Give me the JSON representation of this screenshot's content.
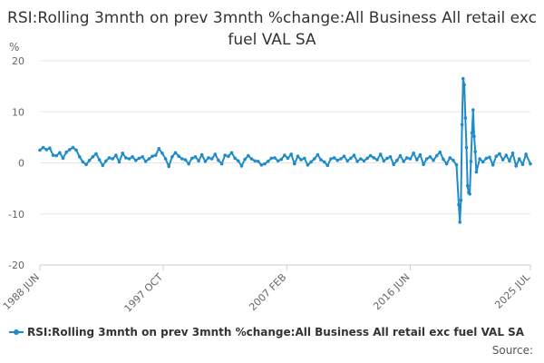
{
  "chart_data": {
    "type": "line",
    "title": "RSI:Rolling 3mnth on prev 3mnth %change:All Business All retail exc fuel VAL SA",
    "ylabel": "%",
    "xlabel": "",
    "ylim": [
      -20,
      20
    ],
    "yticks": [
      20,
      10,
      0,
      -10,
      -20
    ],
    "x_tick_labels": [
      "1988 JUN",
      "1997 OCT",
      "2007 FEB",
      "2016 JUN",
      "2025 JUL"
    ],
    "grid": true,
    "legend_position": "bottom-left",
    "source_label": "Source:",
    "series": [
      {
        "name": "RSI:Rolling 3mnth on prev 3mnth %change:All Business All retail exc fuel VAL SA",
        "color": "#1f8bc8",
        "points": [
          [
            "1988 JUN",
            2.5
          ],
          [
            "1988 SEP",
            3.0
          ],
          [
            "1988 DEC",
            2.6
          ],
          [
            "1989 MAR",
            2.9
          ],
          [
            "1989 JUN",
            1.5
          ],
          [
            "1989 SEP",
            1.4
          ],
          [
            "1989 DEC",
            2.0
          ],
          [
            "1990 MAR",
            0.9
          ],
          [
            "1990 JUN",
            2.1
          ],
          [
            "1990 SEP",
            2.6
          ],
          [
            "1990 DEC",
            3.0
          ],
          [
            "1991 MAR",
            2.5
          ],
          [
            "1991 JUN",
            1.2
          ],
          [
            "1991 SEP",
            0.2
          ],
          [
            "1991 DEC",
            -0.3
          ],
          [
            "1992 MAR",
            0.5
          ],
          [
            "1992 JUN",
            1.2
          ],
          [
            "1992 SEP",
            1.8
          ],
          [
            "1992 DEC",
            0.6
          ],
          [
            "1993 MAR",
            -0.5
          ],
          [
            "1993 JUN",
            0.4
          ],
          [
            "1993 SEP",
            1.0
          ],
          [
            "1993 DEC",
            0.8
          ],
          [
            "1994 MAR",
            1.5
          ],
          [
            "1994 JUN",
            0.2
          ],
          [
            "1994 SEP",
            1.9
          ],
          [
            "1994 DEC",
            1.0
          ],
          [
            "1995 MAR",
            0.8
          ],
          [
            "1995 JUN",
            1.2
          ],
          [
            "1995 SEP",
            0.5
          ],
          [
            "1995 DEC",
            0.9
          ],
          [
            "1996 MAR",
            1.2
          ],
          [
            "1996 JUN",
            0.3
          ],
          [
            "1996 SEP",
            0.8
          ],
          [
            "1996 DEC",
            1.3
          ],
          [
            "1997 MAR",
            1.5
          ],
          [
            "1997 JUN",
            2.8
          ],
          [
            "1997 SEP",
            1.9
          ],
          [
            "1997 DEC",
            0.8
          ],
          [
            "1998 MAR",
            -0.7
          ],
          [
            "1998 JUN",
            1.2
          ],
          [
            "1998 SEP",
            2.0
          ],
          [
            "1998 DEC",
            1.3
          ],
          [
            "1999 MAR",
            0.8
          ],
          [
            "1999 JUN",
            0.6
          ],
          [
            "1999 SEP",
            -0.2
          ],
          [
            "1999 DEC",
            0.9
          ],
          [
            "2000 MAR",
            1.2
          ],
          [
            "2000 JUN",
            0.4
          ],
          [
            "2000 SEP",
            1.6
          ],
          [
            "2000 DEC",
            0.3
          ],
          [
            "2001 MAR",
            1.0
          ],
          [
            "2001 JUN",
            0.8
          ],
          [
            "2001 SEP",
            1.7
          ],
          [
            "2001 DEC",
            0.5
          ],
          [
            "2002 MAR",
            -0.2
          ],
          [
            "2002 JUN",
            1.5
          ],
          [
            "2002 SEP",
            1.3
          ],
          [
            "2002 DEC",
            2.0
          ],
          [
            "2003 MAR",
            0.9
          ],
          [
            "2003 JUN",
            0.4
          ],
          [
            "2003 SEP",
            -0.6
          ],
          [
            "2003 DEC",
            0.7
          ],
          [
            "2004 MAR",
            1.4
          ],
          [
            "2004 JUN",
            0.8
          ],
          [
            "2004 SEP",
            0.4
          ],
          [
            "2004 DEC",
            0.3
          ],
          [
            "2005 MAR",
            -0.4
          ],
          [
            "2005 JUN",
            -0.2
          ],
          [
            "2005 SEP",
            0.3
          ],
          [
            "2005 DEC",
            0.9
          ],
          [
            "2006 MAR",
            1.0
          ],
          [
            "2006 JUN",
            0.4
          ],
          [
            "2006 SEP",
            0.7
          ],
          [
            "2006 DEC",
            1.5
          ],
          [
            "2007 MAR",
            0.9
          ],
          [
            "2007 JUN",
            1.7
          ],
          [
            "2007 SEP",
            -0.2
          ],
          [
            "2007 DEC",
            1.3
          ],
          [
            "2008 MAR",
            0.6
          ],
          [
            "2008 JUN",
            0.9
          ],
          [
            "2008 SEP",
            -0.4
          ],
          [
            "2008 DEC",
            0.2
          ],
          [
            "2009 MAR",
            0.8
          ],
          [
            "2009 JUN",
            1.6
          ],
          [
            "2009 SEP",
            0.6
          ],
          [
            "2009 DEC",
            0.2
          ],
          [
            "2010 MAR",
            -0.5
          ],
          [
            "2010 JUN",
            0.8
          ],
          [
            "2010 SEP",
            1.0
          ],
          [
            "2010 DEC",
            0.5
          ],
          [
            "2011 MAR",
            0.8
          ],
          [
            "2011 JUN",
            1.3
          ],
          [
            "2011 SEP",
            0.4
          ],
          [
            "2011 DEC",
            0.9
          ],
          [
            "2012 MAR",
            1.5
          ],
          [
            "2012 JUN",
            0.3
          ],
          [
            "2012 SEP",
            0.8
          ],
          [
            "2012 DEC",
            0.4
          ],
          [
            "2013 MAR",
            0.9
          ],
          [
            "2013 JUN",
            1.4
          ],
          [
            "2013 SEP",
            1.0
          ],
          [
            "2013 DEC",
            0.6
          ],
          [
            "2014 MAR",
            1.7
          ],
          [
            "2014 JUN",
            0.4
          ],
          [
            "2014 SEP",
            0.9
          ],
          [
            "2014 DEC",
            1.2
          ],
          [
            "2015 MAR",
            -0.3
          ],
          [
            "2015 JUN",
            0.5
          ],
          [
            "2015 SEP",
            1.4
          ],
          [
            "2015 DEC",
            0.3
          ],
          [
            "2016 MAR",
            1.0
          ],
          [
            "2016 JUN",
            0.8
          ],
          [
            "2016 SEP",
            1.9
          ],
          [
            "2016 DEC",
            0.6
          ],
          [
            "2017 MAR",
            1.6
          ],
          [
            "2017 JUN",
            -0.3
          ],
          [
            "2017 SEP",
            0.8
          ],
          [
            "2017 DEC",
            1.2
          ],
          [
            "2018 MAR",
            0.5
          ],
          [
            "2018 JUN",
            1.4
          ],
          [
            "2018 SEP",
            2.1
          ],
          [
            "2018 DEC",
            0.7
          ],
          [
            "2019 MAR",
            -0.2
          ],
          [
            "2019 JUN",
            1.0
          ],
          [
            "2019 SEP",
            0.5
          ],
          [
            "2019 DEC",
            -0.4
          ],
          [
            "2020 FEB",
            -8.2
          ],
          [
            "2020 MAR",
            -11.6
          ],
          [
            "2020 APR",
            -7.3
          ],
          [
            "2020 MAY",
            7.5
          ],
          [
            "2020 JUN",
            16.5
          ],
          [
            "2020 JUL",
            15.3
          ],
          [
            "2020 AUG",
            8.8
          ],
          [
            "2020 SEP",
            3.0
          ],
          [
            "2020 OCT",
            -4.5
          ],
          [
            "2020 NOV",
            -5.8
          ],
          [
            "2020 DEC",
            -6.1
          ],
          [
            "2021 JAN",
            0.3
          ],
          [
            "2021 FEB",
            5.9
          ],
          [
            "2021 MAR",
            10.4
          ],
          [
            "2021 APR",
            5.2
          ],
          [
            "2021 MAY",
            2.2
          ],
          [
            "2021 JUN",
            -1.8
          ],
          [
            "2021 SEP",
            0.8
          ],
          [
            "2021 DEC",
            0.2
          ],
          [
            "2022 MAR",
            0.9
          ],
          [
            "2022 JUN",
            1.1
          ],
          [
            "2022 SEP",
            -0.4
          ],
          [
            "2022 DEC",
            1.3
          ],
          [
            "2023 MAR",
            1.8
          ],
          [
            "2023 JUN",
            0.6
          ],
          [
            "2023 SEP",
            1.5
          ],
          [
            "2023 DEC",
            0.4
          ],
          [
            "2024 MAR",
            1.9
          ],
          [
            "2024 JUN",
            -0.6
          ],
          [
            "2024 SEP",
            0.8
          ],
          [
            "2024 DEC",
            -0.3
          ],
          [
            "2025 MAR",
            1.7
          ],
          [
            "2025 JUL",
            -0.2
          ]
        ]
      }
    ]
  }
}
